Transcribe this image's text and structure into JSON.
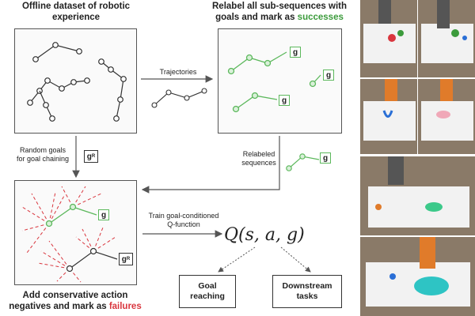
{
  "panels": {
    "offline_title": "Offline dataset of robotic experience",
    "relabel_title_1": "Relabel all sub-sequences with",
    "relabel_title_2": "goals and mark as ",
    "relabel_title_3": "successes",
    "negatives_title_1": "Add conservative action",
    "negatives_title_2": "negatives and mark as ",
    "negatives_title_3": "failures"
  },
  "labels": {
    "trajectories": "Trajectories",
    "random_goals_1": "Random goals",
    "random_goals_2": "for goal chaining",
    "relabeled_1": "Relabeled",
    "relabeled_2": "sequences",
    "train_1": "Train goal-conditioned",
    "train_2": "Q-function"
  },
  "symbols": {
    "g": "g",
    "g_r_main": "g",
    "g_r_sub": "R",
    "q_function": "Q(s, a, g)"
  },
  "outputs": {
    "goal_reaching_1": "Goal",
    "goal_reaching_2": "reaching",
    "downstream_1": "Downstream",
    "downstream_2": "tasks"
  },
  "colors": {
    "success_green": "#3c9b3c",
    "failure_red": "#d9363e",
    "node_green": "#5cb85c"
  }
}
